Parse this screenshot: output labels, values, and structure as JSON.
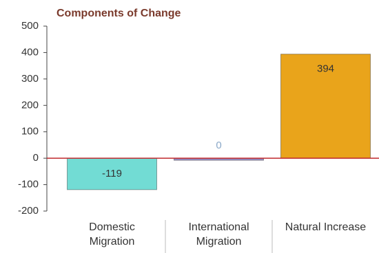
{
  "chart_data": {
    "type": "bar",
    "title": "Components of Change",
    "categories": [
      "Domestic Migration",
      "International Migration",
      "Natural Increase"
    ],
    "values": [
      -119,
      0,
      394
    ],
    "colors": [
      "#72dcd4",
      "#9a8fc4",
      "#e9a41b"
    ],
    "ylim": [
      -200,
      500
    ],
    "yticks": [
      -200,
      -100,
      0,
      100,
      200,
      300,
      400,
      500
    ]
  }
}
